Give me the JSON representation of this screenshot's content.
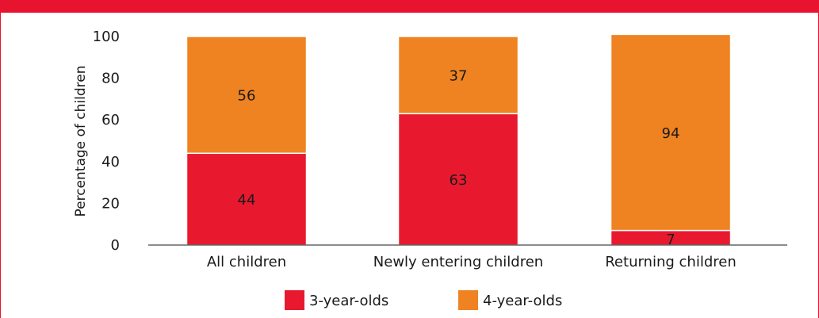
{
  "colors": {
    "frame": "#e8132f",
    "three_year_olds": "#e8192f",
    "four_year_olds": "#ef8321",
    "axis": "#1a1a1a"
  },
  "chart_data": {
    "type": "bar",
    "stacked": true,
    "title": "",
    "xlabel": "",
    "ylabel": "Percentage of children",
    "ylim": [
      0,
      100
    ],
    "yticks": [
      "0",
      "20",
      "40",
      "60",
      "80",
      "100"
    ],
    "categories": [
      "All children",
      "Newly entering children",
      "Returning children"
    ],
    "series": [
      {
        "name": "3-year-olds",
        "values": [
          44,
          63,
          7
        ],
        "labels": [
          "44",
          "63",
          "7"
        ]
      },
      {
        "name": "4-year-olds",
        "values": [
          56,
          37,
          94
        ],
        "labels": [
          "56",
          "37",
          "94"
        ]
      }
    ],
    "grid": false,
    "legend_position": "bottom"
  }
}
